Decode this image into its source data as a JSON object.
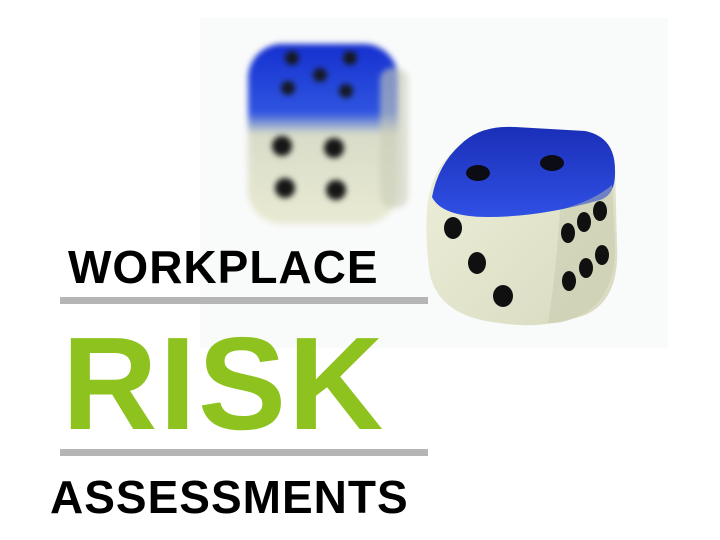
{
  "headline": {
    "line1": "WORKPLACE",
    "line2": "RISK",
    "line3": "ASSESSMENTS"
  },
  "colors": {
    "primary_text": "#000000",
    "accent_green": "#8dc21f",
    "divider_gray": "#b5b5b5",
    "die_blue": "#1e3ad6",
    "die_cream": "#eceed6"
  },
  "dice": [
    {
      "name": "rear-die",
      "top_face": 5,
      "front_face": 4,
      "focus": "blurred"
    },
    {
      "name": "front-die",
      "top_face": 2,
      "front_face": 3,
      "side_face": 6,
      "focus": "sharp"
    }
  ]
}
